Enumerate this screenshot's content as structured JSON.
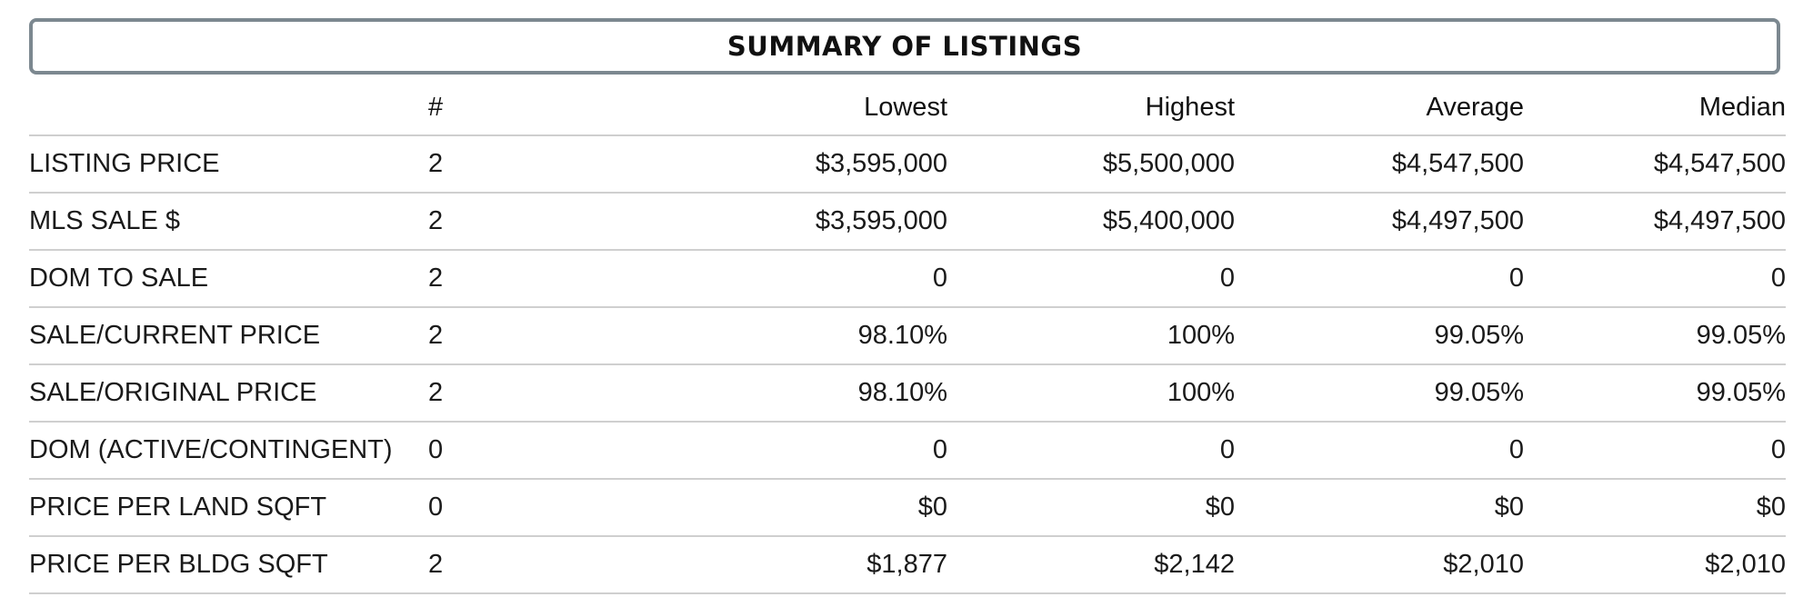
{
  "title": "SUMMARY OF LISTINGS",
  "columns": {
    "label": "",
    "count": "#",
    "lowest": "Lowest",
    "highest": "Highest",
    "average": "Average",
    "median": "Median"
  },
  "rows": [
    {
      "label": "LISTING PRICE",
      "count": "2",
      "lowest": "$3,595,000",
      "highest": "$5,500,000",
      "average": "$4,547,500",
      "median": "$4,547,500"
    },
    {
      "label": "MLS SALE $",
      "count": "2",
      "lowest": "$3,595,000",
      "highest": "$5,400,000",
      "average": "$4,497,500",
      "median": "$4,497,500"
    },
    {
      "label": "DOM TO SALE",
      "count": "2",
      "lowest": "0",
      "highest": "0",
      "average": "0",
      "median": "0"
    },
    {
      "label": "SALE/CURRENT PRICE",
      "count": "2",
      "lowest": "98.10%",
      "highest": "100%",
      "average": "99.05%",
      "median": "99.05%"
    },
    {
      "label": "SALE/ORIGINAL PRICE",
      "count": "2",
      "lowest": "98.10%",
      "highest": "100%",
      "average": "99.05%",
      "median": "99.05%"
    },
    {
      "label": "DOM (ACTIVE/CONTINGENT)",
      "count": "0",
      "lowest": "0",
      "highest": "0",
      "average": "0",
      "median": "0"
    },
    {
      "label": "PRICE PER LAND SQFT",
      "count": "0",
      "lowest": "$0",
      "highest": "$0",
      "average": "$0",
      "median": "$0"
    },
    {
      "label": "PRICE PER BLDG SQFT",
      "count": "2",
      "lowest": "$1,877",
      "highest": "$2,142",
      "average": "$2,010",
      "median": "$2,010"
    }
  ]
}
